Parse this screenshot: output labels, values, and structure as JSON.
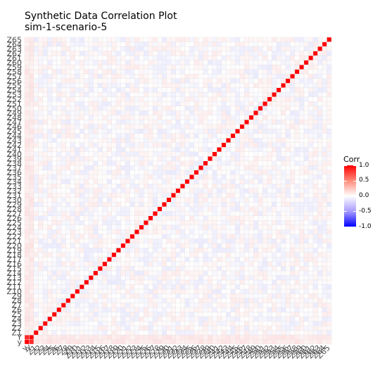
{
  "chart_data": {
    "type": "heatmap",
    "title": "Synthetic Data Correlation Plot",
    "subtitle": "sim-1-scenario-5",
    "variables": [
      "y",
      "Y",
      "Z1",
      "Z2",
      "Z3",
      "Z4",
      "Z5",
      "Z6",
      "Z7",
      "Z8",
      "Z9",
      "Z10",
      "Z11",
      "Z12",
      "Z13",
      "Z14",
      "Z15",
      "Z16",
      "Z17",
      "Z18",
      "Z19",
      "Z20",
      "Z21",
      "Z22",
      "Z23",
      "Z24",
      "Z25",
      "Z26",
      "Z27",
      "Z28",
      "Z29",
      "Z30",
      "Z31",
      "Z32",
      "Z33",
      "Z34",
      "Z35",
      "Z36",
      "Z37",
      "Z38",
      "Z39",
      "Z40",
      "Z41",
      "Z42",
      "Z43",
      "Z44",
      "Z45",
      "Z46",
      "Z47",
      "Z48",
      "Z49",
      "Z50",
      "Z51",
      "Z52",
      "Z53",
      "Z54",
      "Z55",
      "Z56",
      "Z57",
      "Z58",
      "Z59",
      "Z60",
      "Z61",
      "Z62",
      "Z63",
      "Z64",
      "Z65"
    ],
    "diagonal_value": 1.0,
    "y_Y_correlation": 0.85,
    "y_Z_correlation_range": [
      0.05,
      0.12
    ],
    "off_diagonal_range": [
      -0.08,
      0.08
    ],
    "colorscale": {
      "low": "#0000ff",
      "mid": "#ffffff",
      "high": "#ff0000",
      "limits": [
        -1,
        1
      ]
    },
    "legend": {
      "title": "Corr",
      "ticks": [
        "1.0",
        "0.5",
        "0.0",
        "-0.5",
        "-1.0"
      ],
      "tick_values": [
        1.0,
        0.5,
        0.0,
        -0.5,
        -1.0
      ],
      "placement": "right"
    },
    "grid": true
  }
}
